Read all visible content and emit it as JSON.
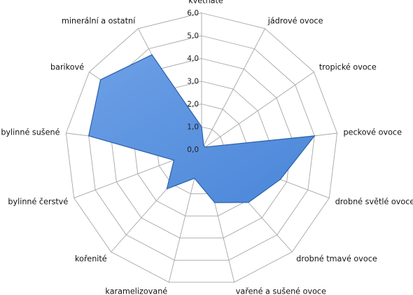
{
  "chart_data": {
    "type": "radar",
    "categories": [
      "květnaté",
      "jádrové ovoce",
      "tropické ovoce",
      "peckové ovoce",
      "drobné světlé ovoce",
      "drobné tmavé ovoce",
      "vařené a sušené ovoce",
      "karamelizované",
      "kořenité",
      "bylinné čerstvé",
      "bylinné sušené",
      "barikové",
      "minerální a ostatní"
    ],
    "series": [
      {
        "values": [
          1.0,
          0.2,
          0.2,
          5.0,
          3.7,
          3.1,
          2.4,
          1.3,
          2.3,
          1.3,
          5.0,
          5.4,
          4.7
        ]
      }
    ],
    "tick_labels": [
      "0,0",
      "1,0",
      "2,0",
      "3,0",
      "4,0",
      "5,0",
      "6,0"
    ],
    "rmax": 6,
    "grid": true,
    "colors": {
      "fill": "#4a86d8",
      "fill_light": "#6da0e6",
      "stroke": "#2a5faa",
      "grid": "#a6a6a6"
    }
  }
}
